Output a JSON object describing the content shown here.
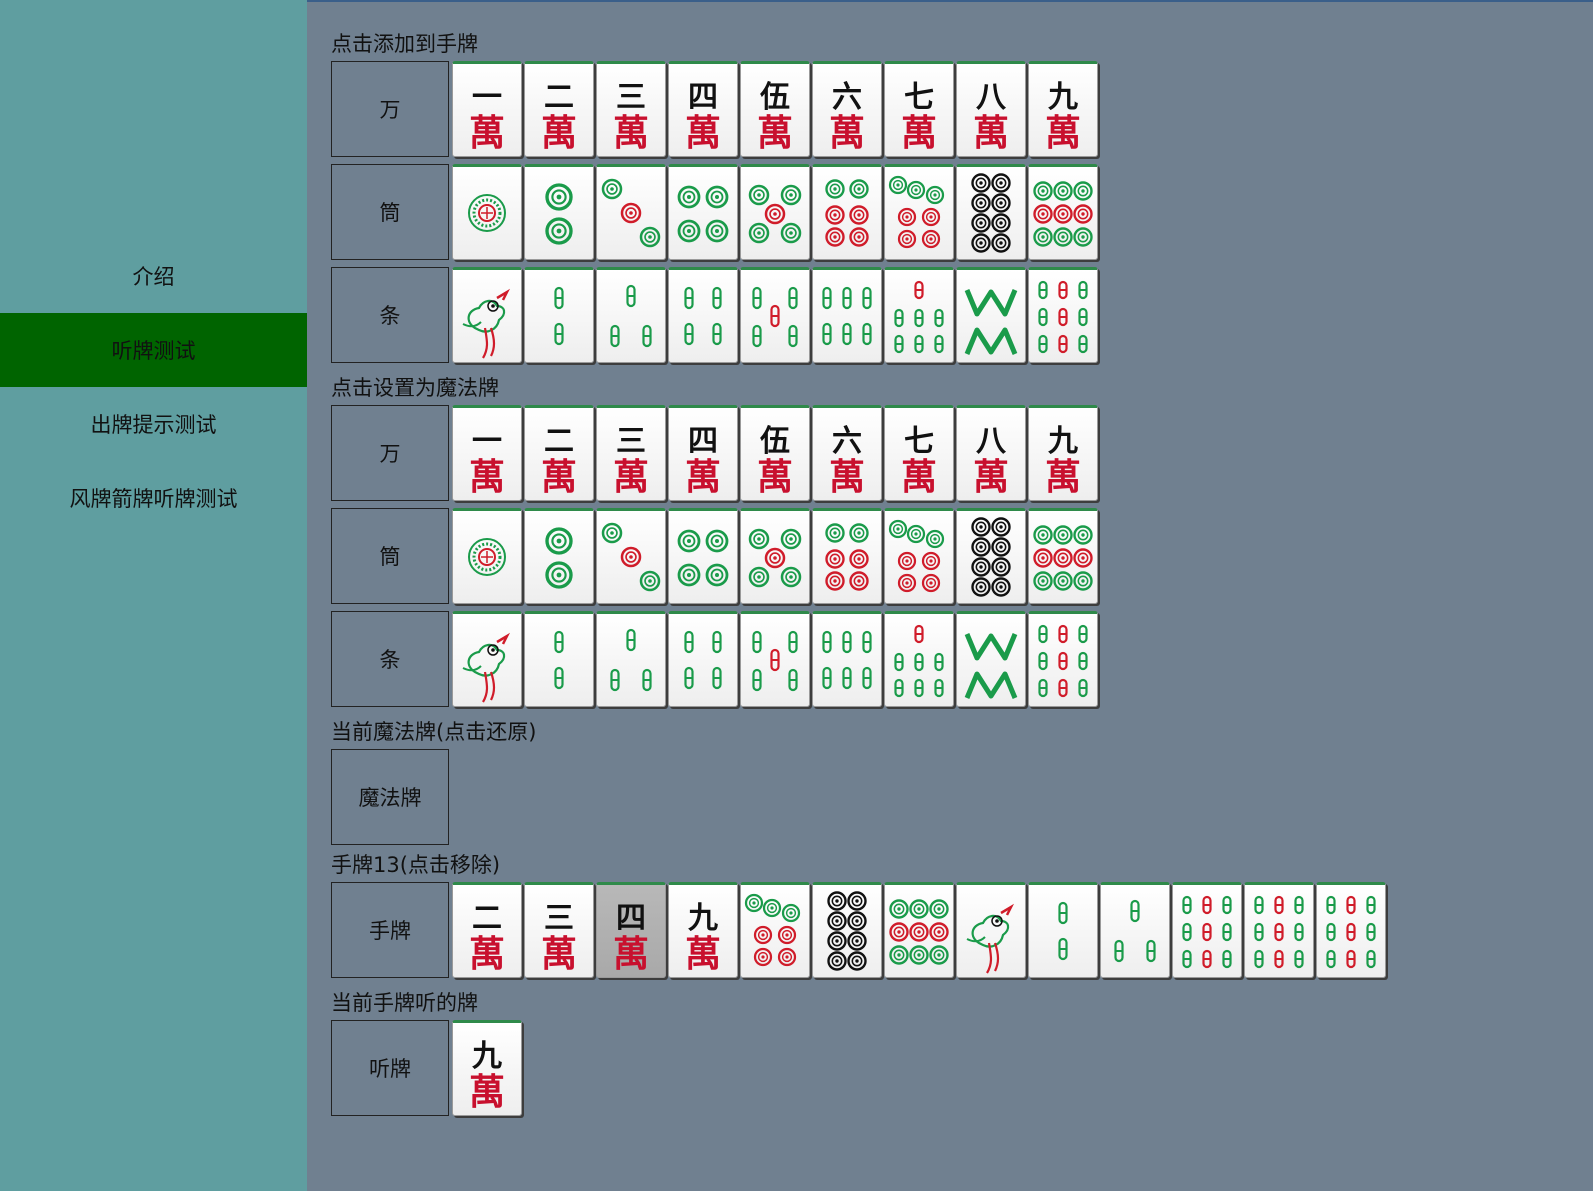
{
  "nav": {
    "items": [
      {
        "label": "介绍",
        "active": false
      },
      {
        "label": "听牌测试",
        "active": true
      },
      {
        "label": "出牌提示测试",
        "active": false
      },
      {
        "label": "风牌箭牌听牌测试",
        "active": false
      }
    ]
  },
  "sections": {
    "add": {
      "title": "点击添加到手牌"
    },
    "magic": {
      "title": "点击设置为魔法牌"
    },
    "current_magic": {
      "title": "当前魔法牌(点击还原)",
      "label": "魔法牌"
    },
    "hand": {
      "title": "手牌13(点击移除)",
      "label": "手牌"
    },
    "waits": {
      "title": "当前手牌听的牌",
      "label": "听牌"
    }
  },
  "suits": {
    "wan": "万",
    "tong": "筒",
    "tiao": "条"
  },
  "wan_numerals": [
    "一",
    "二",
    "三",
    "四",
    "伍",
    "六",
    "七",
    "八",
    "九"
  ],
  "wan_glyph": "萬",
  "hand_tiles": [
    "w2",
    "w3",
    "w4",
    "w9",
    "p7",
    "p8",
    "p9",
    "s1",
    "s2",
    "s3",
    "s9",
    "s9",
    "s9"
  ],
  "hand_dimmed_index": 2,
  "wait_tiles": [
    "w9"
  ],
  "colors": {
    "sidebar": "#5f9ea0",
    "nav_active": "#006400",
    "main_bg": "#708090",
    "dot_green": "#1a9b4a",
    "dot_red": "#d01c2a",
    "dot_black": "#111111"
  }
}
